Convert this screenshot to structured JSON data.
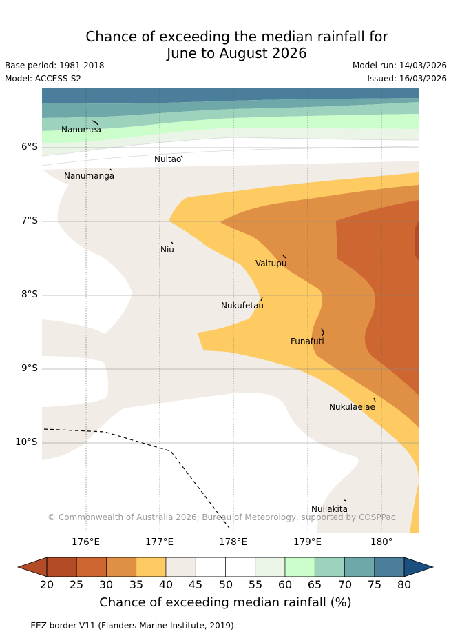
{
  "title": {
    "line1": "Chance of exceeding the median rainfall for",
    "line2": "June to August 2026"
  },
  "meta": {
    "base_period": "Base period: 1981-2018",
    "model": "Model: ACCESS-S2",
    "model_run": "Model run: 14/03/2026",
    "issued": "Issued: 16/03/2026"
  },
  "map": {
    "lat_labels": [
      "6°S",
      "7°S",
      "8°S",
      "9°S",
      "10°S"
    ],
    "lon_labels": [
      "176°E",
      "177°E",
      "178°E",
      "179°E",
      "180°"
    ],
    "places": [
      {
        "name": "Nanumea"
      },
      {
        "name": "Nuitao"
      },
      {
        "name": "Nanumanga"
      },
      {
        "name": "Niu"
      },
      {
        "name": "Vaitupu"
      },
      {
        "name": "Nukufetau"
      },
      {
        "name": "Funafuti"
      },
      {
        "name": "Nukulaelae"
      },
      {
        "name": "Nuilakita"
      }
    ],
    "copyright": "© Commonwealth of Australia 2026, Bureau of Meteorology, supported by COSPPac"
  },
  "colorbar": {
    "ticks": [
      "20",
      "25",
      "30",
      "35",
      "40",
      "45",
      "50",
      "55",
      "60",
      "65",
      "70",
      "75",
      "80"
    ],
    "colors": [
      "#b34b26",
      "#cd6631",
      "#e09045",
      "#fecb63",
      "#f1ece6",
      "#ffffff",
      "#ffffff",
      "#eaf5e8",
      "#ccfecc",
      "#9dd3bc",
      "#6fa8a8",
      "#4a7e9a",
      "#1b4f80"
    ],
    "label": "Chance of exceeding median rainfall (%)"
  },
  "footnote": "-- -- -- EEZ border V11 (Flanders Marine Institute, 2019)."
}
